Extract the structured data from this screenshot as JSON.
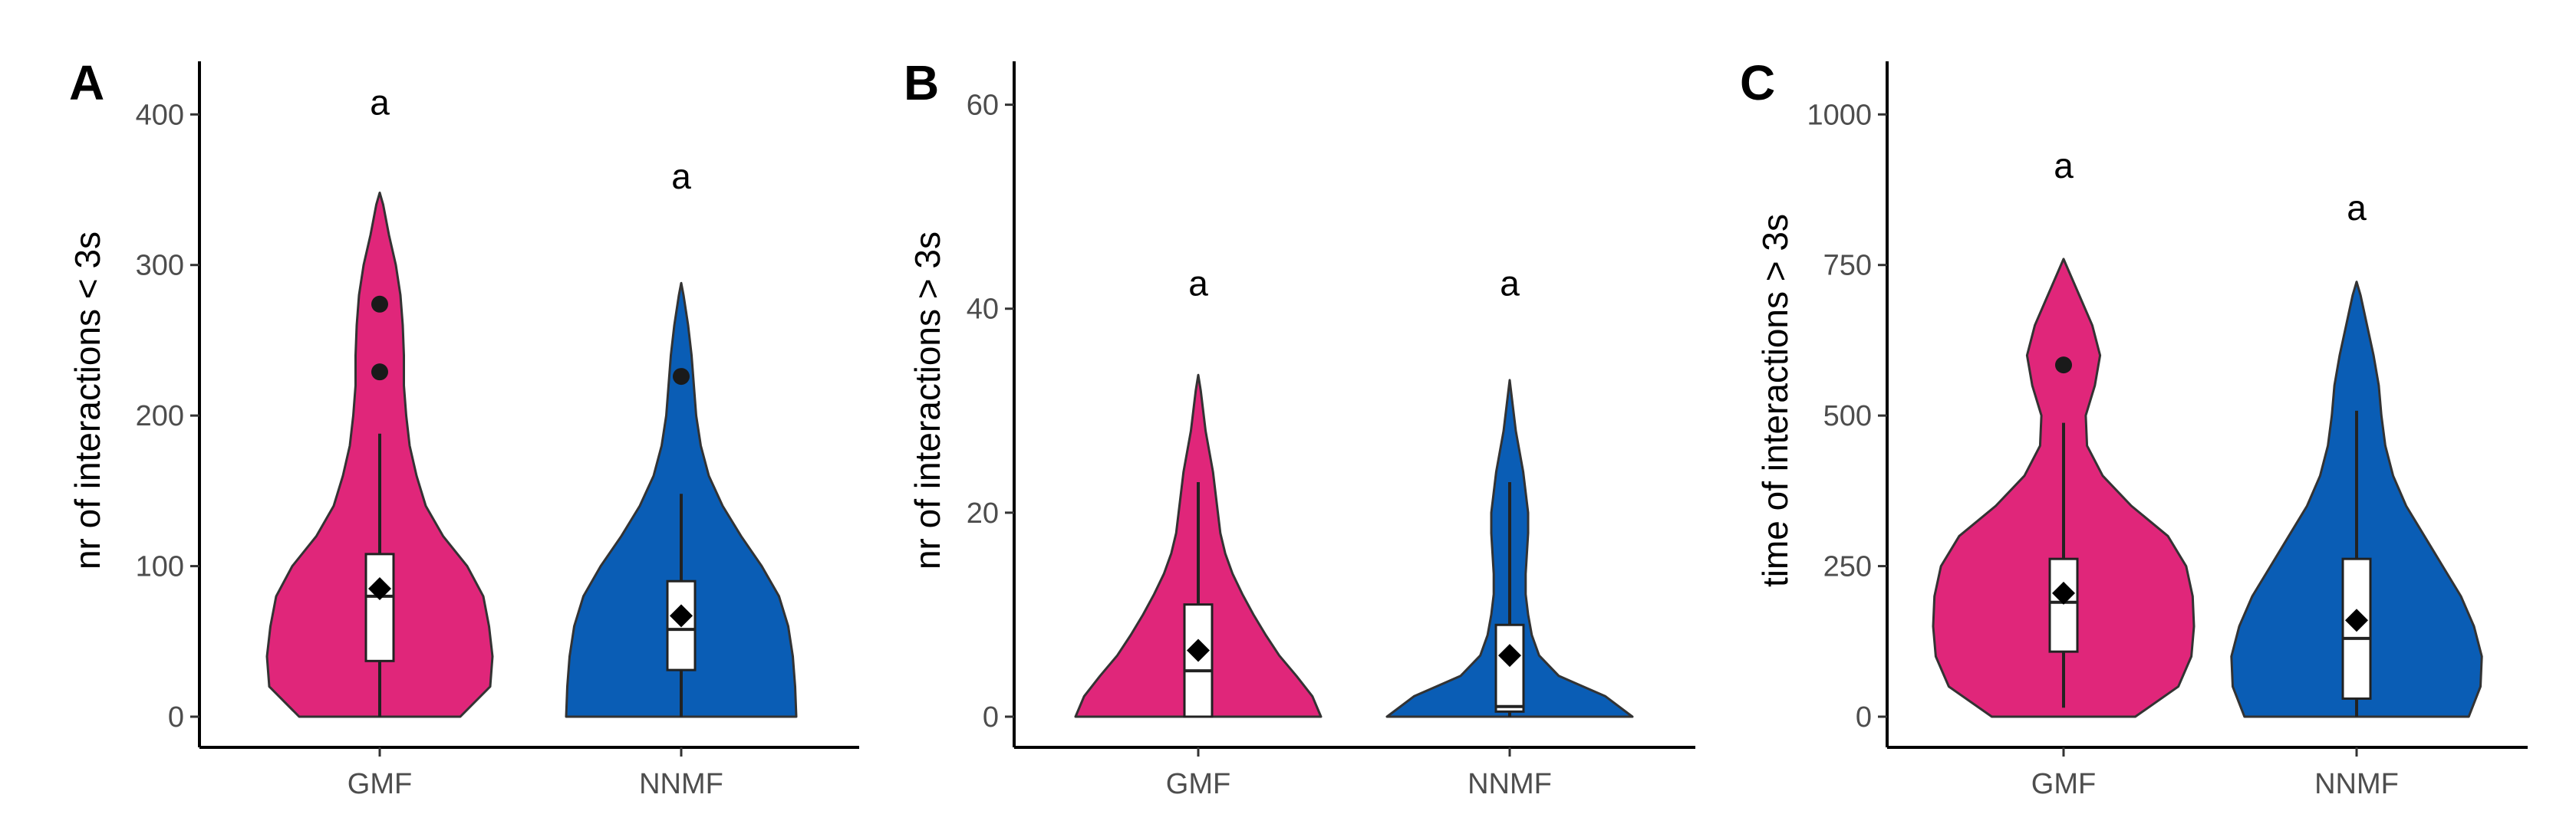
{
  "colors": {
    "GMF": "#E0267A",
    "NNMF": "#0A5DB5"
  },
  "chart_data": [
    {
      "panel": "A",
      "type": "violin",
      "ylabel": "nr of interactions < 3s",
      "ylim": [
        0,
        420
      ],
      "yticks": [
        0,
        100,
        200,
        300,
        400
      ],
      "categories": [
        "GMF",
        "NNMF"
      ],
      "groups": [
        {
          "name": "GMF",
          "q1": 37,
          "median": 80,
          "q3": 108,
          "whisker_low": 0,
          "whisker_high": 188,
          "mean": 85,
          "outliers": [
            229,
            274
          ],
          "sig_label": "a",
          "sig_y": 408,
          "max": 348,
          "profile": [
            [
              0,
              0.7
            ],
            [
              20,
              0.96
            ],
            [
              40,
              0.98
            ],
            [
              60,
              0.95
            ],
            [
              80,
              0.9
            ],
            [
              100,
              0.76
            ],
            [
              120,
              0.55
            ],
            [
              140,
              0.4
            ],
            [
              160,
              0.32
            ],
            [
              180,
              0.26
            ],
            [
              200,
              0.23
            ],
            [
              220,
              0.21
            ],
            [
              240,
              0.21
            ],
            [
              260,
              0.2
            ],
            [
              280,
              0.18
            ],
            [
              300,
              0.14
            ],
            [
              320,
              0.08
            ],
            [
              340,
              0.03
            ],
            [
              348,
              0
            ]
          ]
        },
        {
          "name": "NNMF",
          "q1": 31,
          "median": 58,
          "q3": 90,
          "whisker_low": 0,
          "whisker_high": 148,
          "mean": 67,
          "outliers": [
            226
          ],
          "sig_label": "a",
          "sig_y": 359,
          "max": 288,
          "profile": [
            [
              0,
              1.0
            ],
            [
              20,
              0.99
            ],
            [
              40,
              0.97
            ],
            [
              60,
              0.93
            ],
            [
              80,
              0.85
            ],
            [
              100,
              0.7
            ],
            [
              120,
              0.52
            ],
            [
              140,
              0.36
            ],
            [
              160,
              0.24
            ],
            [
              180,
              0.17
            ],
            [
              200,
              0.13
            ],
            [
              220,
              0.11
            ],
            [
              240,
              0.09
            ],
            [
              260,
              0.06
            ],
            [
              280,
              0.02
            ],
            [
              288,
              0
            ]
          ]
        }
      ]
    },
    {
      "panel": "B",
      "type": "violin",
      "ylabel": "nr of interactions > 3s",
      "ylim": [
        0,
        62
      ],
      "yticks": [
        0,
        20,
        40,
        60
      ],
      "categories": [
        "GMF",
        "NNMF"
      ],
      "groups": [
        {
          "name": "GMF",
          "q1": 0,
          "median": 4.5,
          "q3": 11,
          "whisker_low": 0,
          "whisker_high": 23,
          "mean": 6.5,
          "outliers": [],
          "sig_label": "a",
          "sig_y": 42.5,
          "max": 33.5,
          "profile": [
            [
              0,
              1.0
            ],
            [
              2,
              0.93
            ],
            [
              4,
              0.8
            ],
            [
              6,
              0.66
            ],
            [
              8,
              0.55
            ],
            [
              10,
              0.45
            ],
            [
              12,
              0.36
            ],
            [
              14,
              0.28
            ],
            [
              16,
              0.22
            ],
            [
              18,
              0.18
            ],
            [
              20,
              0.16
            ],
            [
              22,
              0.14
            ],
            [
              24,
              0.12
            ],
            [
              26,
              0.09
            ],
            [
              28,
              0.06
            ],
            [
              30,
              0.04
            ],
            [
              32,
              0.02
            ],
            [
              33.5,
              0
            ]
          ]
        },
        {
          "name": "NNMF",
          "q1": 0.5,
          "median": 1,
          "q3": 9,
          "whisker_low": 0,
          "whisker_high": 23,
          "mean": 6,
          "outliers": [],
          "sig_label": "a",
          "sig_y": 42.5,
          "max": 33,
          "profile": [
            [
              0,
              1.0
            ],
            [
              2,
              0.78
            ],
            [
              4,
              0.4
            ],
            [
              6,
              0.24
            ],
            [
              8,
              0.18
            ],
            [
              10,
              0.15
            ],
            [
              12,
              0.13
            ],
            [
              14,
              0.13
            ],
            [
              16,
              0.14
            ],
            [
              18,
              0.15
            ],
            [
              20,
              0.15
            ],
            [
              22,
              0.13
            ],
            [
              24,
              0.11
            ],
            [
              26,
              0.08
            ],
            [
              28,
              0.05
            ],
            [
              30,
              0.03
            ],
            [
              33,
              0
            ]
          ]
        }
      ]
    },
    {
      "panel": "C",
      "type": "violin",
      "ylabel": "time of interactions > 3s",
      "ylim": [
        0,
        1050
      ],
      "yticks": [
        0,
        250,
        500,
        750,
        1000
      ],
      "categories": [
        "GMF",
        "NNMF"
      ],
      "groups": [
        {
          "name": "GMF",
          "q1": 108,
          "median": 190,
          "q3": 262,
          "whisker_low": 15,
          "whisker_high": 488,
          "mean": 205,
          "outliers": [
            584
          ],
          "sig_label": "a",
          "sig_y": 915,
          "max": 760,
          "profile": [
            [
              0,
              0.55
            ],
            [
              50,
              0.88
            ],
            [
              100,
              0.98
            ],
            [
              150,
              1.0
            ],
            [
              200,
              0.99
            ],
            [
              250,
              0.94
            ],
            [
              300,
              0.8
            ],
            [
              350,
              0.52
            ],
            [
              400,
              0.3
            ],
            [
              450,
              0.18
            ],
            [
              500,
              0.17
            ],
            [
              550,
              0.24
            ],
            [
              600,
              0.28
            ],
            [
              650,
              0.22
            ],
            [
              700,
              0.12
            ],
            [
              740,
              0.04
            ],
            [
              760,
              0
            ]
          ]
        },
        {
          "name": "NNMF",
          "q1": 30,
          "median": 130,
          "q3": 262,
          "whisker_low": 0,
          "whisker_high": 508,
          "mean": 160,
          "outliers": [],
          "sig_label": "a",
          "sig_y": 845,
          "max": 722,
          "profile": [
            [
              0,
              0.86
            ],
            [
              50,
              0.95
            ],
            [
              100,
              0.96
            ],
            [
              150,
              0.9
            ],
            [
              200,
              0.8
            ],
            [
              250,
              0.66
            ],
            [
              300,
              0.52
            ],
            [
              350,
              0.38
            ],
            [
              400,
              0.28
            ],
            [
              450,
              0.22
            ],
            [
              500,
              0.19
            ],
            [
              550,
              0.17
            ],
            [
              600,
              0.13
            ],
            [
              650,
              0.08
            ],
            [
              700,
              0.03
            ],
            [
              722,
              0
            ]
          ]
        }
      ]
    }
  ]
}
